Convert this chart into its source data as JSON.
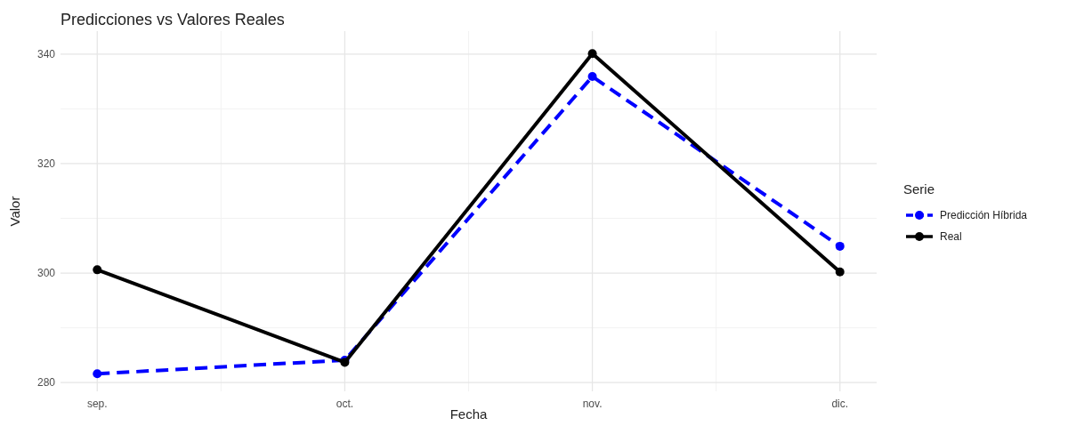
{
  "chart_data": {
    "type": "line",
    "title": "Predicciones vs Valores Reales",
    "xlabel": "Fecha",
    "ylabel": "Valor",
    "legend_title": "Serie",
    "categories": [
      "sep.",
      "oct.",
      "nov.",
      "dic."
    ],
    "series": [
      {
        "name": "Predicción Híbrida",
        "color": "#0000ff",
        "line_style": "dashed",
        "values": [
          281.6,
          284.1,
          335.9,
          304.9
        ]
      },
      {
        "name": "Real",
        "color": "#000000",
        "line_style": "solid",
        "values": [
          300.6,
          283.7,
          340.1,
          300.2
        ]
      }
    ],
    "ylim": [
      278.4,
      344.2
    ],
    "yticks": [
      280,
      300,
      320,
      340
    ],
    "grid": true,
    "legend": "right",
    "marker": "circle"
  }
}
